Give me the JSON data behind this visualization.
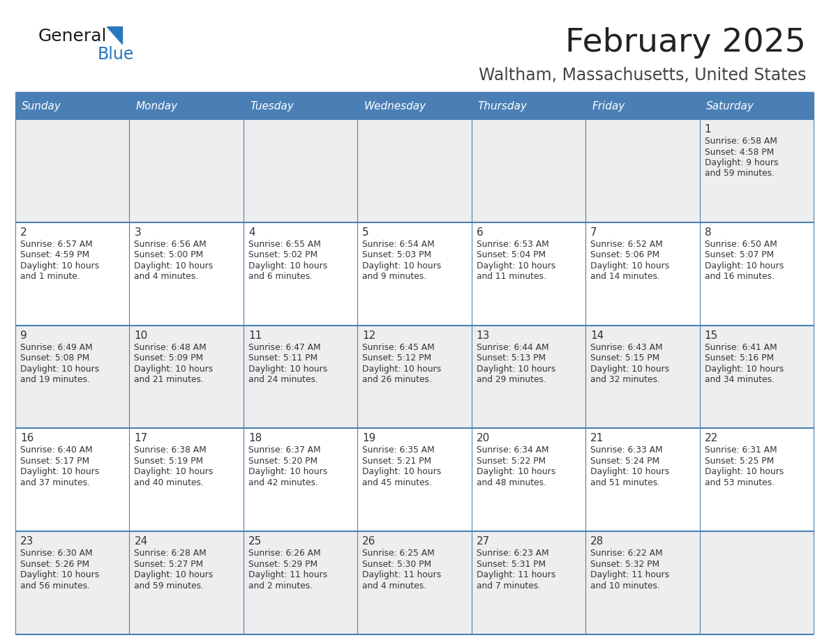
{
  "title": "February 2025",
  "subtitle": "Waltham, Massachusetts, United States",
  "days_of_week": [
    "Sunday",
    "Monday",
    "Tuesday",
    "Wednesday",
    "Thursday",
    "Friday",
    "Saturday"
  ],
  "header_bg": "#4a7fb5",
  "header_text": "#ffffff",
  "row_bg_odd": "#eeeeee",
  "row_bg_even": "#ffffff",
  "border_color": "#4a7fb5",
  "day_num_color": "#333333",
  "cell_text_color": "#333333",
  "title_color": "#222222",
  "subtitle_color": "#444444",
  "logo_general_color": "#1a1a1a",
  "logo_blue_color": "#2878be",
  "calendar_data": [
    {
      "day": 1,
      "row": 0,
      "col": 6,
      "sunrise": "6:58 AM",
      "sunset": "4:58 PM",
      "daylight": "9 hours and 59 minutes."
    },
    {
      "day": 2,
      "row": 1,
      "col": 0,
      "sunrise": "6:57 AM",
      "sunset": "4:59 PM",
      "daylight": "10 hours and 1 minute."
    },
    {
      "day": 3,
      "row": 1,
      "col": 1,
      "sunrise": "6:56 AM",
      "sunset": "5:00 PM",
      "daylight": "10 hours and 4 minutes."
    },
    {
      "day": 4,
      "row": 1,
      "col": 2,
      "sunrise": "6:55 AM",
      "sunset": "5:02 PM",
      "daylight": "10 hours and 6 minutes."
    },
    {
      "day": 5,
      "row": 1,
      "col": 3,
      "sunrise": "6:54 AM",
      "sunset": "5:03 PM",
      "daylight": "10 hours and 9 minutes."
    },
    {
      "day": 6,
      "row": 1,
      "col": 4,
      "sunrise": "6:53 AM",
      "sunset": "5:04 PM",
      "daylight": "10 hours and 11 minutes."
    },
    {
      "day": 7,
      "row": 1,
      "col": 5,
      "sunrise": "6:52 AM",
      "sunset": "5:06 PM",
      "daylight": "10 hours and 14 minutes."
    },
    {
      "day": 8,
      "row": 1,
      "col": 6,
      "sunrise": "6:50 AM",
      "sunset": "5:07 PM",
      "daylight": "10 hours and 16 minutes."
    },
    {
      "day": 9,
      "row": 2,
      "col": 0,
      "sunrise": "6:49 AM",
      "sunset": "5:08 PM",
      "daylight": "10 hours and 19 minutes."
    },
    {
      "day": 10,
      "row": 2,
      "col": 1,
      "sunrise": "6:48 AM",
      "sunset": "5:09 PM",
      "daylight": "10 hours and 21 minutes."
    },
    {
      "day": 11,
      "row": 2,
      "col": 2,
      "sunrise": "6:47 AM",
      "sunset": "5:11 PM",
      "daylight": "10 hours and 24 minutes."
    },
    {
      "day": 12,
      "row": 2,
      "col": 3,
      "sunrise": "6:45 AM",
      "sunset": "5:12 PM",
      "daylight": "10 hours and 26 minutes."
    },
    {
      "day": 13,
      "row": 2,
      "col": 4,
      "sunrise": "6:44 AM",
      "sunset": "5:13 PM",
      "daylight": "10 hours and 29 minutes."
    },
    {
      "day": 14,
      "row": 2,
      "col": 5,
      "sunrise": "6:43 AM",
      "sunset": "5:15 PM",
      "daylight": "10 hours and 32 minutes."
    },
    {
      "day": 15,
      "row": 2,
      "col": 6,
      "sunrise": "6:41 AM",
      "sunset": "5:16 PM",
      "daylight": "10 hours and 34 minutes."
    },
    {
      "day": 16,
      "row": 3,
      "col": 0,
      "sunrise": "6:40 AM",
      "sunset": "5:17 PM",
      "daylight": "10 hours and 37 minutes."
    },
    {
      "day": 17,
      "row": 3,
      "col": 1,
      "sunrise": "6:38 AM",
      "sunset": "5:19 PM",
      "daylight": "10 hours and 40 minutes."
    },
    {
      "day": 18,
      "row": 3,
      "col": 2,
      "sunrise": "6:37 AM",
      "sunset": "5:20 PM",
      "daylight": "10 hours and 42 minutes."
    },
    {
      "day": 19,
      "row": 3,
      "col": 3,
      "sunrise": "6:35 AM",
      "sunset": "5:21 PM",
      "daylight": "10 hours and 45 minutes."
    },
    {
      "day": 20,
      "row": 3,
      "col": 4,
      "sunrise": "6:34 AM",
      "sunset": "5:22 PM",
      "daylight": "10 hours and 48 minutes."
    },
    {
      "day": 21,
      "row": 3,
      "col": 5,
      "sunrise": "6:33 AM",
      "sunset": "5:24 PM",
      "daylight": "10 hours and 51 minutes."
    },
    {
      "day": 22,
      "row": 3,
      "col": 6,
      "sunrise": "6:31 AM",
      "sunset": "5:25 PM",
      "daylight": "10 hours and 53 minutes."
    },
    {
      "day": 23,
      "row": 4,
      "col": 0,
      "sunrise": "6:30 AM",
      "sunset": "5:26 PM",
      "daylight": "10 hours and 56 minutes."
    },
    {
      "day": 24,
      "row": 4,
      "col": 1,
      "sunrise": "6:28 AM",
      "sunset": "5:27 PM",
      "daylight": "10 hours and 59 minutes."
    },
    {
      "day": 25,
      "row": 4,
      "col": 2,
      "sunrise": "6:26 AM",
      "sunset": "5:29 PM",
      "daylight": "11 hours and 2 minutes."
    },
    {
      "day": 26,
      "row": 4,
      "col": 3,
      "sunrise": "6:25 AM",
      "sunset": "5:30 PM",
      "daylight": "11 hours and 4 minutes."
    },
    {
      "day": 27,
      "row": 4,
      "col": 4,
      "sunrise": "6:23 AM",
      "sunset": "5:31 PM",
      "daylight": "11 hours and 7 minutes."
    },
    {
      "day": 28,
      "row": 4,
      "col": 5,
      "sunrise": "6:22 AM",
      "sunset": "5:32 PM",
      "daylight": "11 hours and 10 minutes."
    }
  ],
  "num_rows": 5,
  "num_cols": 7
}
